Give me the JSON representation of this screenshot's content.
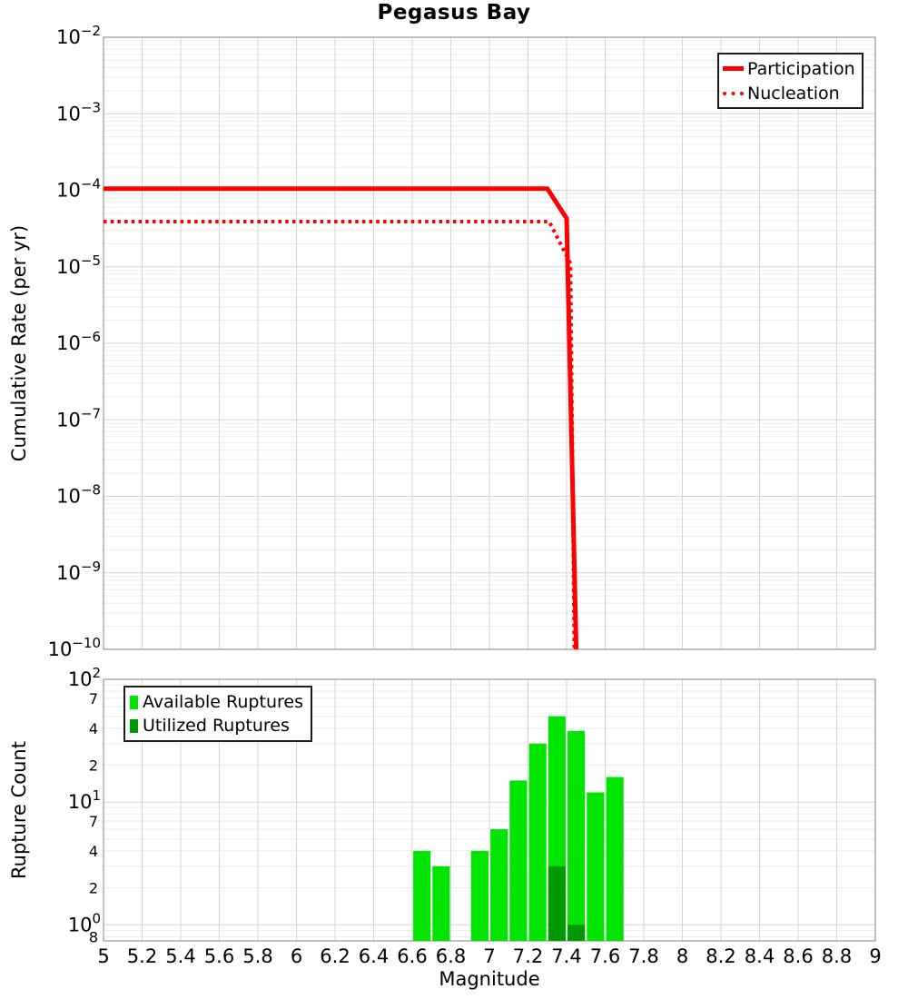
{
  "title": "Pegasus Bay",
  "colors": {
    "line_red": "#ff0000",
    "available_green": "#00e400",
    "utilized_green": "#009900",
    "grid_major": "#d6d6d6",
    "grid_minor": "#ededed",
    "frame": "#9e9e9e",
    "text": "#000000",
    "background": "#ffffff"
  },
  "x_axis": {
    "label": "Magnitude",
    "min": 5,
    "max": 9,
    "ticks": [
      {
        "v": 5,
        "label": "5"
      },
      {
        "v": 5.2,
        "label": "5.2"
      },
      {
        "v": 5.4,
        "label": "5.4"
      },
      {
        "v": 5.6,
        "label": "5.6"
      },
      {
        "v": 5.8,
        "label": "5.8"
      },
      {
        "v": 6,
        "label": "6"
      },
      {
        "v": 6.2,
        "label": "6.2"
      },
      {
        "v": 6.4,
        "label": "6.4"
      },
      {
        "v": 6.6,
        "label": "6.6"
      },
      {
        "v": 6.8,
        "label": "6.8"
      },
      {
        "v": 7,
        "label": "7"
      },
      {
        "v": 7.2,
        "label": "7.2"
      },
      {
        "v": 7.4,
        "label": "7.4"
      },
      {
        "v": 7.6,
        "label": "7.6"
      },
      {
        "v": 7.8,
        "label": "7.8"
      },
      {
        "v": 8,
        "label": "8"
      },
      {
        "v": 8.2,
        "label": "8.2"
      },
      {
        "v": 8.4,
        "label": "8.4"
      },
      {
        "v": 8.6,
        "label": "8.6"
      },
      {
        "v": 8.8,
        "label": "8.8"
      },
      {
        "v": 9,
        "label": "9"
      }
    ]
  },
  "chart_data": [
    {
      "type": "line",
      "panel": "top",
      "title": "Pegasus Bay",
      "ylabel": "Cumulative Rate (per yr)",
      "y_scale": "log",
      "ylim_exp": [
        -10,
        -2
      ],
      "y_tick_exponents": [
        -2,
        -3,
        -4,
        -5,
        -6,
        -7,
        -8,
        -9,
        -10
      ],
      "xlim": [
        5,
        9
      ],
      "grid": true,
      "legend_position": "top-right",
      "series": [
        {
          "name": "Participation",
          "style": "solid",
          "color": "#ff0000",
          "width": 5,
          "points": [
            [
              5.0,
              0.000105
            ],
            [
              7.3,
              0.000105
            ],
            [
              7.4,
              4.3e-05
            ],
            [
              7.45,
              1e-10
            ]
          ]
        },
        {
          "name": "Nucleation",
          "style": "dotted",
          "color": "#ff0000",
          "width": 4,
          "points": [
            [
              5.0,
              3.9e-05
            ],
            [
              7.31,
              3.9e-05
            ],
            [
              7.42,
              1.1e-05
            ],
            [
              7.44,
              1e-10
            ]
          ]
        }
      ]
    },
    {
      "type": "bar",
      "panel": "bottom",
      "ylabel": "Rupture Count",
      "xlabel": "Magnitude",
      "y_scale": "log",
      "ylim": [
        0.74,
        100
      ],
      "y_major_tick_exponents": [
        2,
        1,
        0
      ],
      "y_minor_tick_labels": [
        {
          "value": 70,
          "label": "7"
        },
        {
          "value": 40,
          "label": "4"
        },
        {
          "value": 20,
          "label": "2"
        },
        {
          "value": 7,
          "label": "7"
        },
        {
          "value": 4,
          "label": "4"
        },
        {
          "value": 2,
          "label": "2"
        },
        {
          "value": 0.8,
          "label": "8"
        }
      ],
      "xlim": [
        5,
        9
      ],
      "bin_width": 0.1,
      "bar_width": 0.09,
      "categories": [
        6.65,
        6.75,
        6.95,
        7.05,
        7.15,
        7.25,
        7.35,
        7.45,
        7.55,
        7.65
      ],
      "series": [
        {
          "name": "Available Ruptures",
          "color": "#00e400",
          "values": [
            4,
            3,
            4,
            6,
            15,
            30,
            50,
            38,
            12,
            16
          ]
        },
        {
          "name": "Utilized Ruptures",
          "color": "#009900",
          "values": [
            0,
            0,
            0,
            0,
            0,
            0,
            3,
            1,
            0,
            0
          ]
        }
      ],
      "legend_position": "top-left",
      "grid": true
    }
  ]
}
